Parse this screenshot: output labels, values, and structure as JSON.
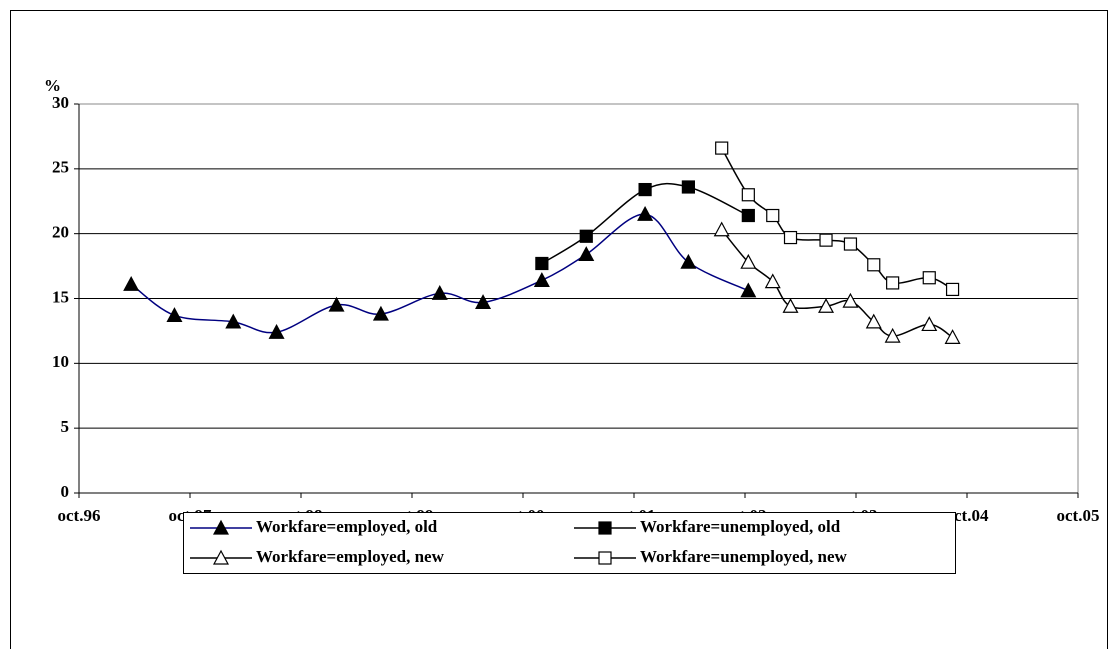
{
  "chart_data": {
    "type": "line",
    "y_label": "%",
    "xlim": [
      1996.75,
      2005.75
    ],
    "xticks": [
      {
        "value": 1996.75,
        "label": "oct.96"
      },
      {
        "value": 1997.75,
        "label": "oct.97"
      },
      {
        "value": 1998.75,
        "label": "oct.98"
      },
      {
        "value": 1999.75,
        "label": "oct.99"
      },
      {
        "value": 2000.75,
        "label": "oct.00"
      },
      {
        "value": 2001.75,
        "label": "oct.01"
      },
      {
        "value": 2002.75,
        "label": "oct.02"
      },
      {
        "value": 2003.75,
        "label": "oct.03"
      },
      {
        "value": 2004.75,
        "label": "oct.04"
      },
      {
        "value": 2005.75,
        "label": "oct.05"
      }
    ],
    "ylim": [
      0,
      30
    ],
    "yticks": [
      0,
      5,
      10,
      15,
      20,
      25,
      30
    ],
    "grid": true,
    "legend": "bottom",
    "series": [
      {
        "name": "Workfare=employed, old",
        "color": "#000080",
        "marker": "triangle",
        "filled": true,
        "x": [
          1997.22,
          1997.61,
          1998.14,
          1998.53,
          1999.07,
          1999.47,
          2000.0,
          2000.39,
          2000.92,
          2001.32,
          2001.85,
          2002.24,
          2002.78
        ],
        "values": [
          16.1,
          13.7,
          13.2,
          12.4,
          14.5,
          13.8,
          15.4,
          14.7,
          16.4,
          18.4,
          21.5,
          17.8,
          15.6
        ]
      },
      {
        "name": "Workfare=unemployed, old",
        "color": "#000000",
        "marker": "square",
        "filled": true,
        "x": [
          2000.92,
          2001.32,
          2001.85,
          2002.24,
          2002.78
        ],
        "values": [
          17.7,
          19.8,
          23.4,
          23.6,
          21.4
        ]
      },
      {
        "name": "Workfare=employed, new",
        "color": "#000000",
        "marker": "triangle",
        "filled": false,
        "x": [
          2002.54,
          2002.78,
          2003.0,
          2003.16,
          2003.48,
          2003.7,
          2003.91,
          2004.08,
          2004.41,
          2004.62
        ],
        "values": [
          20.3,
          17.8,
          16.3,
          14.4,
          14.4,
          14.8,
          13.2,
          12.1,
          13.0,
          12.0
        ]
      },
      {
        "name": "Workfare=unemployed, new",
        "color": "#000000",
        "marker": "square",
        "filled": false,
        "x": [
          2002.54,
          2002.78,
          2003.0,
          2003.16,
          2003.48,
          2003.7,
          2003.91,
          2004.08,
          2004.41,
          2004.62
        ],
        "values": [
          26.6,
          23.0,
          21.4,
          19.7,
          19.5,
          19.2,
          17.6,
          16.2,
          16.6,
          15.7
        ]
      }
    ]
  }
}
